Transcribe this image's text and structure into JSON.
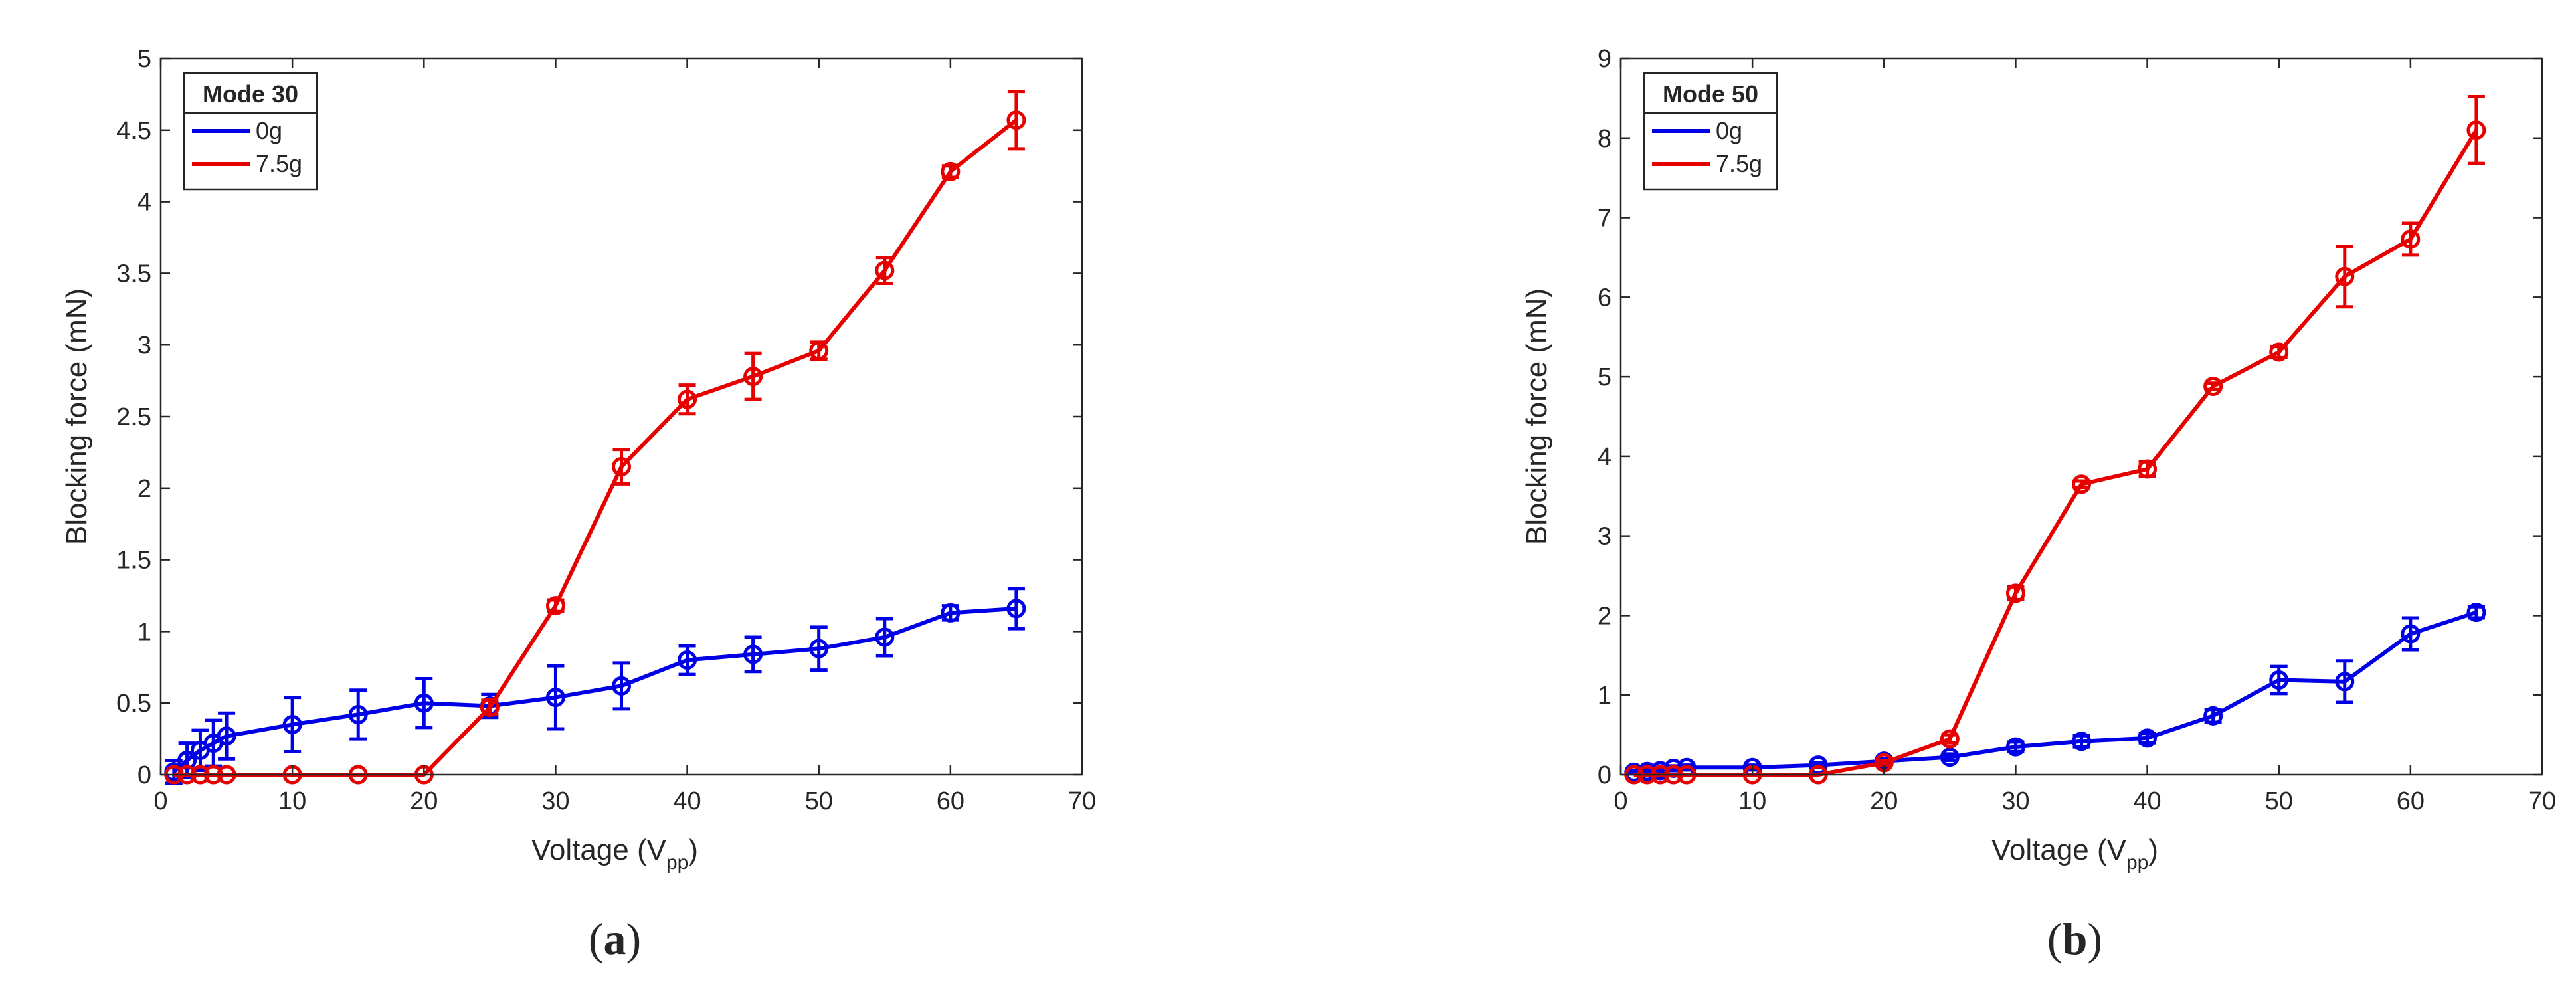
{
  "chart_data": [
    {
      "type": "line",
      "panel_label": "a",
      "legend_title": "Mode 30",
      "xlabel": "Voltage (V",
      "xlabel_sub": "pp",
      "xlabel_end": ")",
      "ylabel": "Blocking force (mN)",
      "xlim": [
        0,
        70
      ],
      "ylim": [
        0,
        5
      ],
      "xticks": [
        0,
        10,
        20,
        30,
        40,
        50,
        60,
        70
      ],
      "yticks": [
        0,
        0.5,
        1,
        1.5,
        2,
        2.5,
        3,
        3.5,
        4,
        4.5,
        5
      ],
      "ytick_labels": [
        "0",
        "0.5",
        "1",
        "1.5",
        "2",
        "2.5",
        "3",
        "3.5",
        "4",
        "4.5",
        "5"
      ],
      "legend_position": "top-left",
      "series": [
        {
          "name": "0g",
          "color": "#0000e6",
          "x": [
            1,
            2,
            3,
            4,
            5,
            10,
            15,
            20,
            25,
            30,
            35,
            40,
            45,
            50,
            55,
            60,
            65
          ],
          "y": [
            0.02,
            0.1,
            0.17,
            0.22,
            0.27,
            0.35,
            0.42,
            0.5,
            0.48,
            0.54,
            0.62,
            0.8,
            0.84,
            0.88,
            0.96,
            1.13,
            1.16
          ],
          "err": [
            0.08,
            0.12,
            0.14,
            0.16,
            0.16,
            0.19,
            0.17,
            0.17,
            0.08,
            0.22,
            0.16,
            0.1,
            0.12,
            0.15,
            0.13,
            0.05,
            0.14
          ]
        },
        {
          "name": "7.5g",
          "color": "#e60000",
          "x": [
            1,
            2,
            3,
            4,
            5,
            10,
            15,
            20,
            25,
            30,
            35,
            40,
            45,
            50,
            55,
            60,
            65
          ],
          "y": [
            0,
            0,
            0,
            0,
            0,
            0,
            0,
            0,
            0.47,
            1.18,
            2.15,
            2.62,
            2.78,
            2.96,
            3.52,
            4.21,
            4.57
          ],
          "err": [
            0,
            0,
            0,
            0,
            0,
            0,
            0,
            0,
            0.05,
            0.04,
            0.12,
            0.1,
            0.16,
            0.06,
            0.09,
            0.04,
            0.2
          ]
        }
      ]
    },
    {
      "type": "line",
      "panel_label": "b",
      "legend_title": "Mode 50",
      "xlabel": "Voltage (V",
      "xlabel_sub": "pp",
      "xlabel_end": ")",
      "ylabel": "Blocking force (mN)",
      "xlim": [
        0,
        70
      ],
      "ylim": [
        0,
        9
      ],
      "xticks": [
        0,
        10,
        20,
        30,
        40,
        50,
        60,
        70
      ],
      "yticks": [
        0,
        1,
        2,
        3,
        4,
        5,
        6,
        7,
        8,
        9
      ],
      "ytick_labels": [
        "0",
        "1",
        "2",
        "3",
        "4",
        "5",
        "6",
        "7",
        "8",
        "9"
      ],
      "legend_position": "top-left",
      "series": [
        {
          "name": "0g",
          "color": "#0000e6",
          "x": [
            1,
            2,
            3,
            4,
            5,
            10,
            15,
            20,
            25,
            30,
            35,
            40,
            45,
            50,
            55,
            60,
            65
          ],
          "y": [
            0.03,
            0.04,
            0.05,
            0.08,
            0.09,
            0.09,
            0.12,
            0.17,
            0.22,
            0.35,
            0.42,
            0.46,
            0.74,
            1.19,
            1.17,
            1.77,
            2.04
          ],
          "err": [
            0.02,
            0.02,
            0.02,
            0.03,
            0.03,
            0.03,
            0.03,
            0.03,
            0.04,
            0.06,
            0.07,
            0.06,
            0.08,
            0.17,
            0.26,
            0.2,
            0.07
          ]
        },
        {
          "name": "7.5g",
          "color": "#e60000",
          "x": [
            1,
            2,
            3,
            4,
            5,
            10,
            15,
            20,
            25,
            30,
            35,
            40,
            45,
            50,
            55,
            60,
            65
          ],
          "y": [
            0,
            0,
            0,
            0,
            0,
            0,
            0,
            0.15,
            0.45,
            2.28,
            3.65,
            3.84,
            4.88,
            5.31,
            6.26,
            6.73,
            8.1
          ],
          "err": [
            0,
            0,
            0,
            0,
            0,
            0,
            0,
            0.03,
            0.05,
            0.08,
            0.04,
            0.09,
            0.04,
            0.07,
            0.38,
            0.2,
            0.42
          ]
        }
      ]
    }
  ]
}
